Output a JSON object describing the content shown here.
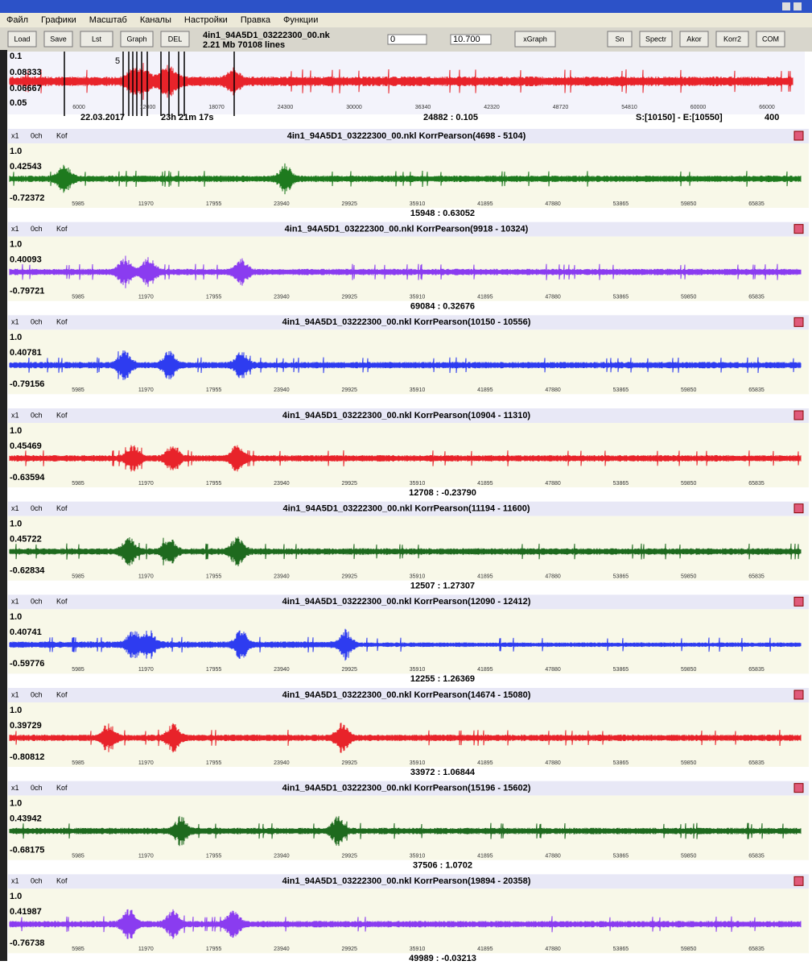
{
  "menu": [
    "Файл",
    "Графики",
    "Масштаб",
    "Каналы",
    "Настройки",
    "Правка",
    "Функции"
  ],
  "toolbar": {
    "buttons_left": [
      "Load",
      "Save",
      "Lst",
      "Graph",
      "DEL"
    ],
    "file_name": "4in1_94A5D1_03222300_00.nk",
    "file_info": "2.21 Mb   70108 lines",
    "input_1": "0",
    "input_2": "10.700",
    "buttons_right": [
      "xGraph",
      "Sn",
      "Spectr",
      "Akor",
      "Korr2",
      "COM"
    ]
  },
  "main_plot": {
    "color": "#e8232a",
    "y_labels": [
      "0.1",
      "0.08333",
      "0.06667",
      "0.05"
    ],
    "x_ticks": [
      "6000",
      "12000",
      "18070",
      "24300",
      "30000",
      "36340",
      "42320",
      "48720",
      "54810",
      "60000",
      "66000"
    ],
    "marker": "5",
    "date": "22.03.2017",
    "time": "23h 21m 17s",
    "cursor": "24882 : 0.105",
    "selection": "S:[10150] - E:[10550]",
    "window": "400"
  },
  "panel_buttons": [
    "x1",
    "0ch",
    "Kof"
  ],
  "panel_x_ticks": [
    "5985",
    "11970",
    "17955",
    "23940",
    "29925",
    "35910",
    "41895",
    "47880",
    "53865",
    "59850",
    "65835"
  ],
  "panels": [
    {
      "title": "4in1_94A5D1_03222300_00.nkl KorrPearson(4698 - 5104)",
      "y_max": "1.0",
      "y_upper": "0.42543",
      "y_lower": "-0.72372",
      "footer": "15948 : 0.63052",
      "color": "#1e7a1e"
    },
    {
      "title": "4in1_94A5D1_03222300_00.nkl KorrPearson(9918 - 10324)",
      "y_max": "1.0",
      "y_upper": "0.40093",
      "y_lower": "-0.79721",
      "footer": "69084 : 0.32676",
      "color": "#8a3cf0"
    },
    {
      "title": "4in1_94A5D1_03222300_00.nkl KorrPearson(10150 - 10556)",
      "y_max": "1.0",
      "y_upper": "0.40781",
      "y_lower": "-0.79156",
      "color": "#2e3cf0"
    },
    {
      "title": "4in1_94A5D1_03222300_00.nkl KorrPearson(10904 - 11310)",
      "y_max": "1.0",
      "y_upper": "0.45469",
      "y_lower": "-0.63594",
      "footer": "12708 : -0.23790",
      "color": "#e8232a"
    },
    {
      "title": "4in1_94A5D1_03222300_00.nkl KorrPearson(11194 - 11600)",
      "y_max": "1.0",
      "y_upper": "0.45722",
      "y_lower": "-0.62834",
      "footer": "12507 : 1.27307",
      "color": "#1e6a1e"
    },
    {
      "title": "4in1_94A5D1_03222300_00.nkl KorrPearson(12090 - 12412)",
      "y_max": "1.0",
      "y_upper": "0.40741",
      "y_lower": "-0.59776",
      "footer": "12255 : 1.26369",
      "color": "#2e3cf0"
    },
    {
      "title": "4in1_94A5D1_03222300_00.nkl KorrPearson(14674 - 15080)",
      "y_max": "1.0",
      "y_upper": "0.39729",
      "y_lower": "-0.80812",
      "footer": "33972 : 1.06844",
      "color": "#e8232a"
    },
    {
      "title": "4in1_94A5D1_03222300_00.nkl KorrPearson(15196 - 15602)",
      "y_max": "1.0",
      "y_upper": "0.43942",
      "y_lower": "-0.68175",
      "footer": "37506 : 1.0702",
      "color": "#1e6a1e"
    },
    {
      "title": "4in1_94A5D1_03222300_00.nkl KorrPearson(19894 - 20358)",
      "y_max": "1.0",
      "y_upper": "0.41987",
      "y_lower": "-0.76738",
      "footer": "49989 : -0.03213",
      "color": "#8a3cf0"
    }
  ]
}
